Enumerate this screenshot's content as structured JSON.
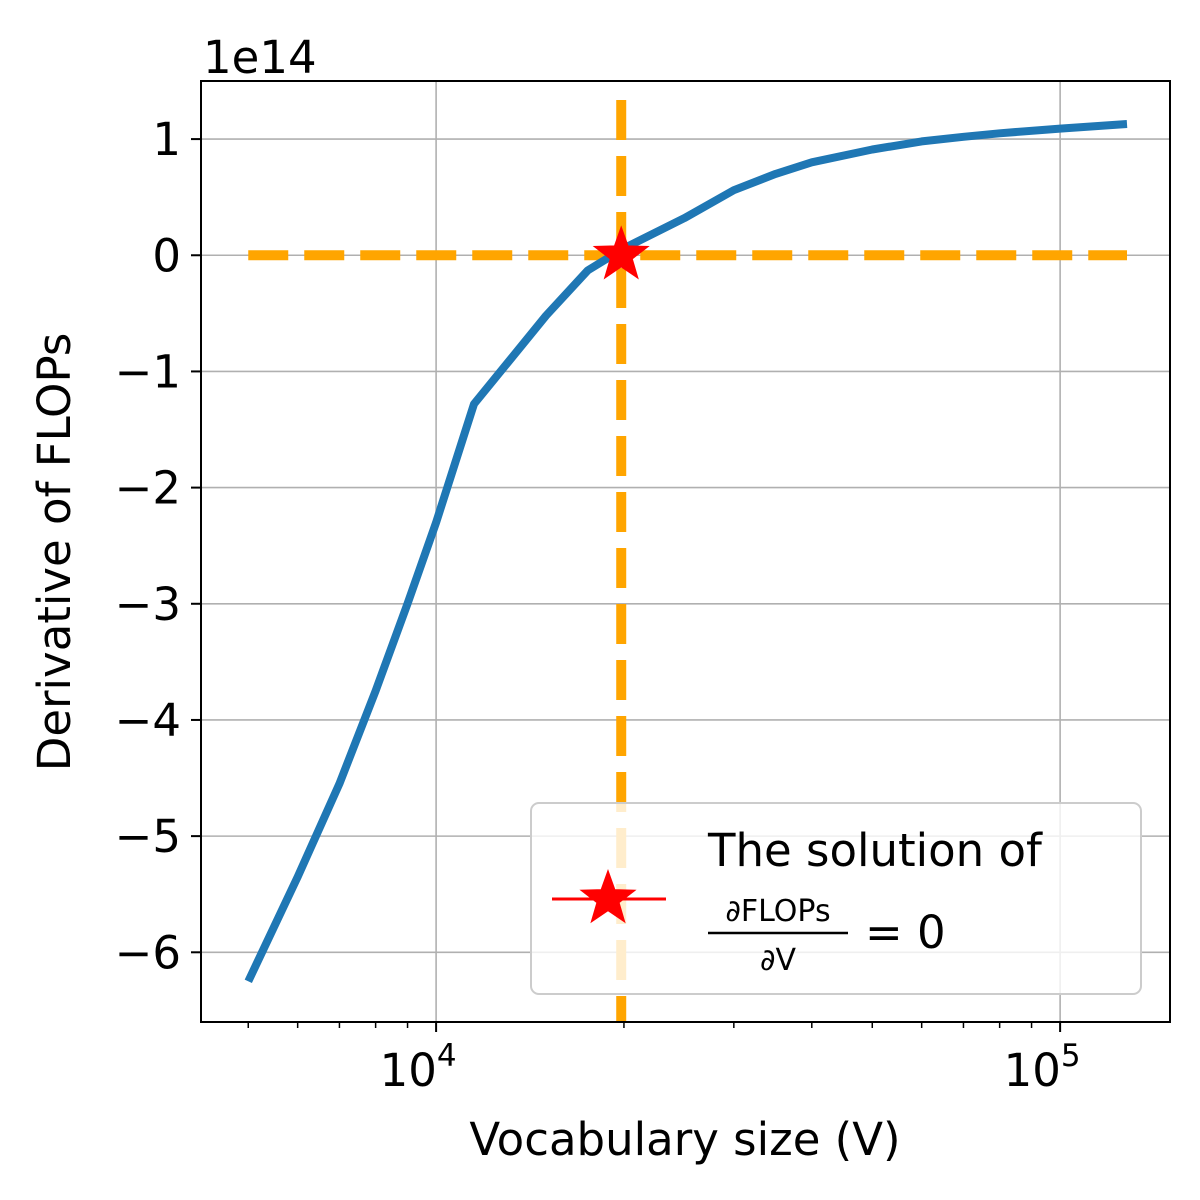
{
  "chart_data": {
    "type": "line",
    "xlabel": "Vocabulary size (V)",
    "ylabel": "Derivative of FLOPs",
    "y_offset_label": "1e14",
    "x_scale": "log",
    "xlim": [
      4200,
      150000
    ],
    "ylim": [
      -6.6,
      1.5
    ],
    "grid": true,
    "legend_position": "lower-right",
    "x_ticks": [
      {
        "value": 10000,
        "base": "10",
        "exp": "4"
      },
      {
        "value": 100000,
        "base": "10",
        "exp": "5"
      }
    ],
    "y_ticks": [
      {
        "value": 1,
        "label": "1"
      },
      {
        "value": 0,
        "label": "0"
      },
      {
        "value": -1,
        "label": "−1"
      },
      {
        "value": -2,
        "label": "−2"
      },
      {
        "value": -3,
        "label": "−3"
      },
      {
        "value": -4,
        "label": "−4"
      },
      {
        "value": -5,
        "label": "−5"
      },
      {
        "value": -6,
        "label": "−6"
      }
    ],
    "series": [
      {
        "color": "#1f77b4",
        "x": [
          5000,
          6000,
          7000,
          8000,
          9000,
          10000,
          11500,
          13000,
          15000,
          17500,
          20000,
          25000,
          30000,
          35000,
          40000,
          50000,
          60000,
          70000,
          80000,
          100000,
          128000
        ],
        "y": [
          -6.25,
          -5.35,
          -4.55,
          -3.75,
          -3.0,
          -2.3,
          -1.28,
          -0.93,
          -0.52,
          -0.13,
          0.06,
          0.32,
          0.56,
          0.7,
          0.8,
          0.91,
          0.98,
          1.02,
          1.05,
          1.09,
          1.13
        ]
      }
    ],
    "reference_lines": {
      "color": "#ffa500",
      "hline_y": 0,
      "hline_x_range": [
        5000,
        128000
      ],
      "vline_x": 19800
    },
    "solution_point": {
      "x": 19800,
      "y": 0,
      "color": "#ff0000"
    },
    "legend": {
      "line1": "The solution of",
      "numerator": "∂FLOPs",
      "denominator": "∂V",
      "rhs": "= 0"
    }
  }
}
